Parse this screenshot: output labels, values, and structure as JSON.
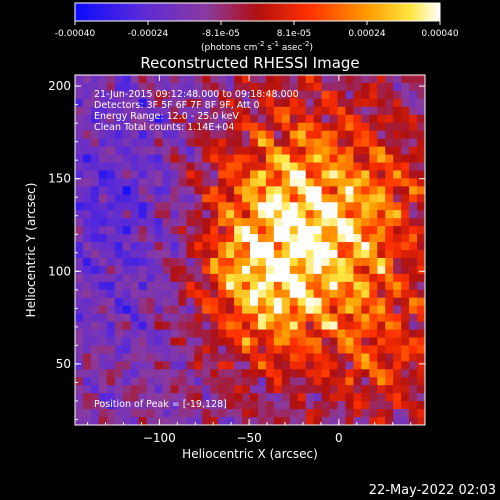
{
  "page": {
    "footer_date": "22-May-2022 02:03"
  },
  "colorbar": {
    "colormap": "blue-purple-red-orange-yellow-white",
    "ticks": [
      "-0.00040",
      "-0.00024",
      "-8.1e-05",
      "8.1e-05",
      "0.00024",
      "0.00040"
    ],
    "range": [
      -0.0004,
      0.0004
    ],
    "label_main": "(photons cm",
    "label_sup1": "-2",
    "label_mid1": " s",
    "label_sup2": "-1",
    "label_mid2": " asec",
    "label_sup3": "-2",
    "label_end": ")"
  },
  "chart_data": {
    "type": "heatmap",
    "title": "Reconstructed RHESSI Image",
    "xlabel": "Heliocentric X (arcsec)",
    "ylabel": "Heliocentric Y (arcsec)",
    "xlim": [
      -147,
      48
    ],
    "ylim": [
      17,
      206
    ],
    "xticks": [
      -100,
      -50,
      0
    ],
    "yticks": [
      50,
      100,
      150,
      200
    ],
    "annotations": [
      "21-Jun-2015 09:12:48.000 to 09:18:48.000",
      "Detectors: 3F 5F 6F 7F 8F 9F, Att 0",
      "Energy Range: 12.0 - 25.0 keV",
      "Clean    Total counts: 1.14E+04"
    ],
    "peak_label": "Position of Peak = [-19,128]",
    "peak": [
      -19,
      128
    ],
    "colors": {
      "low": "#1010ff",
      "mid": "#8040a0",
      "high": "#ffffff"
    }
  }
}
